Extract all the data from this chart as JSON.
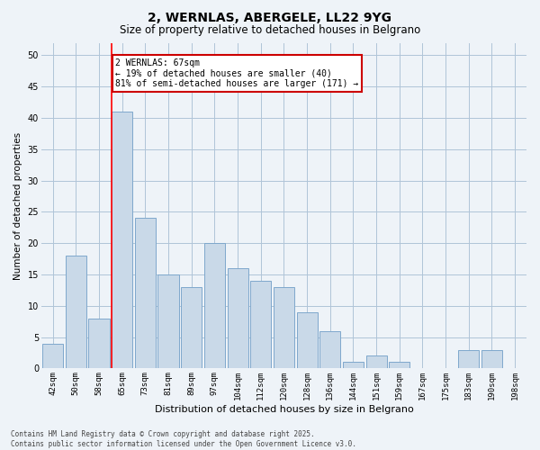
{
  "title1": "2, WERNLAS, ABERGELE, LL22 9YG",
  "title2": "Size of property relative to detached houses in Belgrano",
  "xlabel": "Distribution of detached houses by size in Belgrano",
  "ylabel": "Number of detached properties",
  "categories": [
    "42sqm",
    "50sqm",
    "58sqm",
    "65sqm",
    "73sqm",
    "81sqm",
    "89sqm",
    "97sqm",
    "104sqm",
    "112sqm",
    "120sqm",
    "128sqm",
    "136sqm",
    "144sqm",
    "151sqm",
    "159sqm",
    "167sqm",
    "175sqm",
    "183sqm",
    "190sqm",
    "198sqm"
  ],
  "values": [
    4,
    18,
    8,
    41,
    24,
    15,
    13,
    20,
    16,
    14,
    13,
    9,
    6,
    1,
    2,
    1,
    0,
    0,
    3,
    3,
    0
  ],
  "bar_color": "#c9d9e8",
  "bar_edge_color": "#7fa8cc",
  "grid_color": "#b0c4d8",
  "bg_color": "#eef3f8",
  "red_line_index": 3,
  "annotation_line1": "2 WERNLAS: 67sqm",
  "annotation_line2": "← 19% of detached houses are smaller (40)",
  "annotation_line3": "81% of semi-detached houses are larger (171) →",
  "annotation_box_color": "#ffffff",
  "annotation_border_color": "#cc0000",
  "footer": "Contains HM Land Registry data © Crown copyright and database right 2025.\nContains public sector information licensed under the Open Government Licence v3.0.",
  "ylim": [
    0,
    52
  ],
  "yticks": [
    0,
    5,
    10,
    15,
    20,
    25,
    30,
    35,
    40,
    45,
    50
  ],
  "title1_fontsize": 10,
  "title2_fontsize": 8.5,
  "xlabel_fontsize": 8,
  "ylabel_fontsize": 7.5,
  "tick_fontsize": 6.5,
  "annotation_fontsize": 7,
  "footer_fontsize": 5.5
}
